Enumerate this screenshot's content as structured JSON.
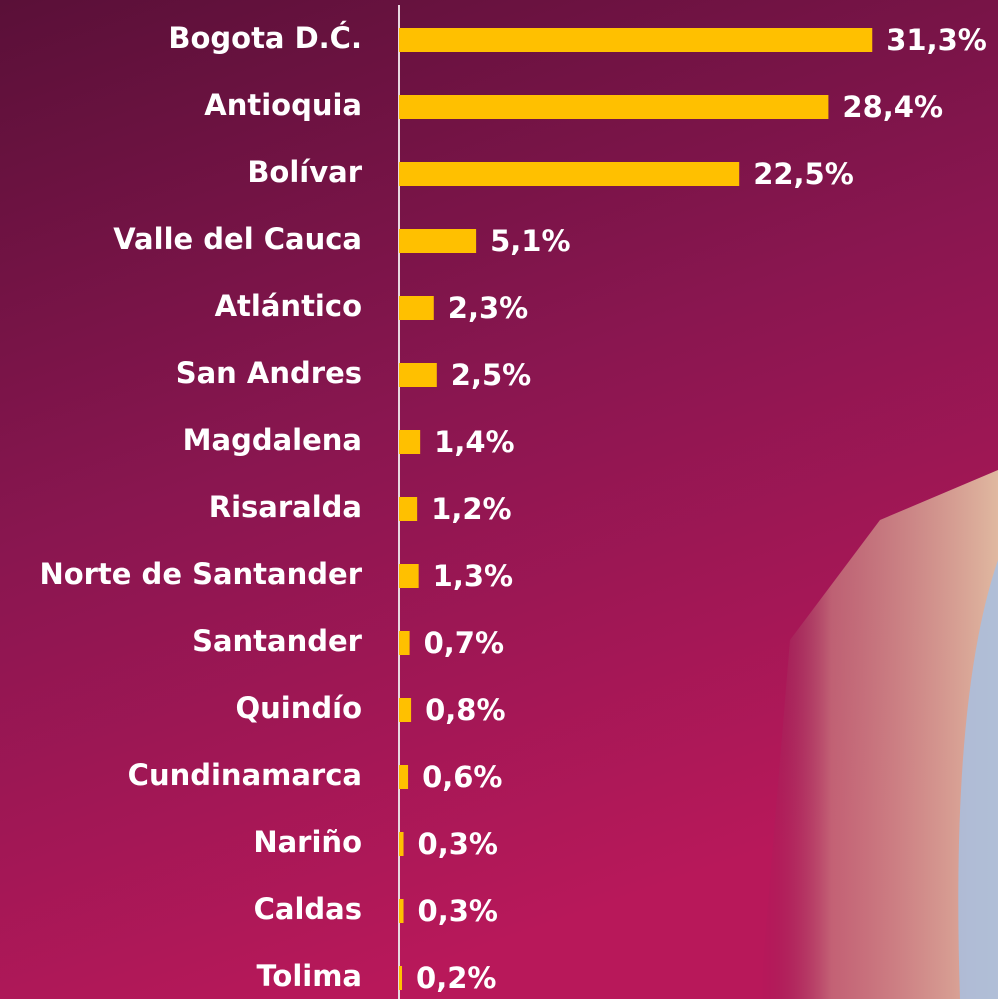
{
  "chart_data": {
    "type": "bar",
    "orientation": "horizontal",
    "categories": [
      "Bogota D.Ć.",
      "Antioquia",
      "Bolívar",
      "Valle del Cauca",
      "Atlántico",
      "San Andres",
      "Magdalena",
      "Risaralda",
      "Norte de Santander",
      "Santander",
      "Quindío",
      "Cundinamarca",
      "Nariño",
      "Caldas",
      "Tolima"
    ],
    "values": [
      31.3,
      28.4,
      22.5,
      5.1,
      2.3,
      2.5,
      1.4,
      1.2,
      1.3,
      0.7,
      0.8,
      0.6,
      0.3,
      0.3,
      0.2
    ],
    "value_labels": [
      "31,3%",
      "28,4%",
      "22,5%",
      "5,1%",
      "2,3%",
      "2,5%",
      "1,4%",
      "1,2%",
      "1,3%",
      "0,7%",
      "0,8%",
      "0,6%",
      "0,3%",
      "0,3%",
      "0,2%"
    ],
    "color": "#ffc000"
  }
}
